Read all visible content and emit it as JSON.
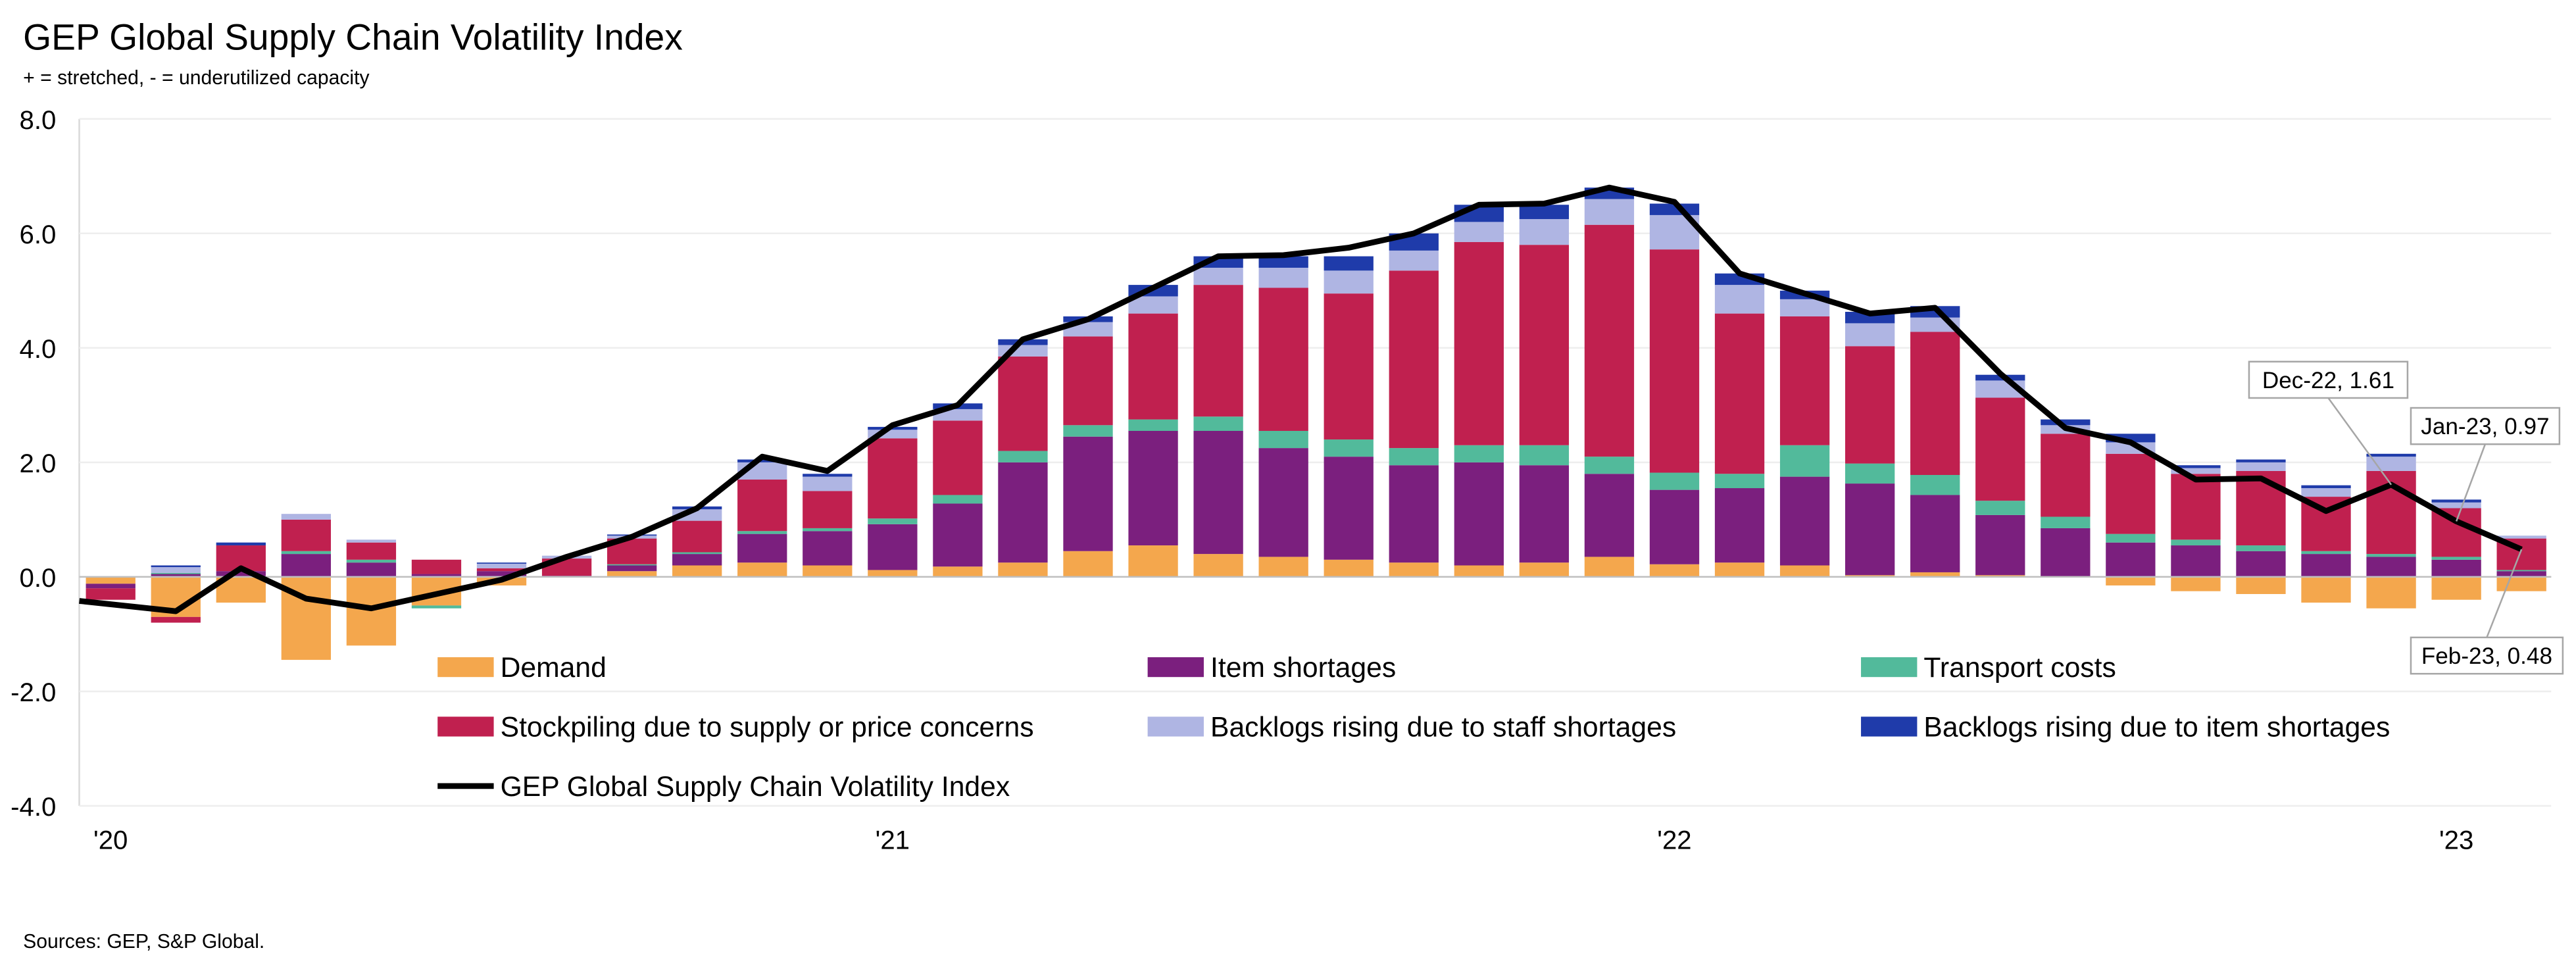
{
  "chart_data": {
    "type": "bar",
    "title": "GEP Global Supply Chain Volatility Index",
    "subtitle": "+ = stretched, - = underutilized capacity",
    "source": "Sources: GEP, S&P Global.",
    "stacked": true,
    "categories": [
      "'20",
      null,
      null,
      null,
      null,
      null,
      null,
      null,
      null,
      null,
      null,
      null,
      "'21",
      null,
      null,
      null,
      null,
      null,
      null,
      null,
      null,
      null,
      null,
      null,
      "'22",
      null,
      null,
      null,
      null,
      null,
      null,
      null,
      null,
      null,
      null,
      null,
      "'23",
      null
    ],
    "ylim": [
      -4,
      8
    ],
    "yticks": [
      {
        "value": -4,
        "label": "-4.0"
      },
      {
        "value": -2,
        "label": "-2.0"
      },
      {
        "value": 0,
        "label": "0.0"
      },
      {
        "value": 2,
        "label": "2.0"
      },
      {
        "value": 4,
        "label": "4.0"
      },
      {
        "value": 6,
        "label": "6.0"
      },
      {
        "value": 8,
        "label": "8.0"
      }
    ],
    "grid": true,
    "series": [
      {
        "name": "Demand",
        "color": "#F4A74D",
        "values": [
          -0.12,
          -0.7,
          -0.45,
          -1.45,
          -1.2,
          -0.5,
          -0.15,
          0,
          0.1,
          0.2,
          0.25,
          0.2,
          0.12,
          0.18,
          0.25,
          0.45,
          0.55,
          0.4,
          0.35,
          0.3,
          0.25,
          0.2,
          0.25,
          0.35,
          0.22,
          0.25,
          0.2,
          0.03,
          0.08,
          0.03,
          0,
          -0.15,
          -0.25,
          -0.3,
          -0.45,
          -0.55,
          -0.4,
          -0.25
        ]
      },
      {
        "name": "Item shortages",
        "color": "#7B1F7E",
        "values": [
          -0.08,
          0.05,
          0.1,
          0.4,
          0.25,
          0.05,
          0.1,
          0.02,
          0.1,
          0.2,
          0.5,
          0.6,
          0.8,
          1.1,
          1.75,
          2.0,
          2.0,
          2.15,
          1.9,
          1.8,
          1.7,
          1.8,
          1.7,
          1.45,
          1.3,
          1.3,
          1.55,
          1.6,
          1.35,
          1.05,
          0.85,
          0.6,
          0.55,
          0.45,
          0.4,
          0.35,
          0.3,
          0.1
        ]
      },
      {
        "name": "Transport costs",
        "color": "#52BA9B",
        "values": [
          0,
          0.02,
          0,
          0.05,
          0.05,
          -0.05,
          0,
          0,
          0.02,
          0.03,
          0.05,
          0.05,
          0.1,
          0.15,
          0.2,
          0.2,
          0.2,
          0.25,
          0.3,
          0.3,
          0.3,
          0.3,
          0.35,
          0.3,
          0.3,
          0.25,
          0.55,
          0.35,
          0.35,
          0.25,
          0.2,
          0.15,
          0.1,
          0.1,
          0.05,
          0.05,
          0.05,
          0.02
        ]
      },
      {
        "name": "Stockpiling due to supply or price concerns",
        "color": "#C0204F",
        "values": [
          -0.2,
          -0.1,
          0.45,
          0.55,
          0.3,
          0.25,
          0.05,
          0.3,
          0.45,
          0.55,
          0.9,
          0.65,
          1.4,
          1.3,
          1.65,
          1.55,
          1.85,
          2.3,
          2.5,
          2.55,
          3.1,
          3.55,
          3.5,
          4.05,
          3.9,
          2.8,
          2.25,
          2.05,
          2.5,
          1.8,
          1.45,
          1.4,
          1.15,
          1.3,
          0.95,
          1.45,
          0.85,
          0.55
        ]
      },
      {
        "name": "Backlogs rising due to staff shortages",
        "color": "#AFB5E3",
        "values": [
          0,
          0.1,
          0,
          0.1,
          0.05,
          0,
          0.08,
          0.05,
          0.05,
          0.2,
          0.3,
          0.25,
          0.15,
          0.2,
          0.2,
          0.25,
          0.3,
          0.3,
          0.35,
          0.4,
          0.35,
          0.35,
          0.45,
          0.45,
          0.6,
          0.5,
          0.3,
          0.4,
          0.25,
          0.3,
          0.15,
          0.2,
          0.1,
          0.15,
          0.15,
          0.25,
          0.1,
          0.05
        ]
      },
      {
        "name": "Backlogs rising due to item shortages",
        "color": "#1F3BAA",
        "values": [
          0,
          0.03,
          0.05,
          0,
          0,
          0,
          0.02,
          0,
          0.02,
          0.05,
          0.05,
          0.05,
          0.05,
          0.1,
          0.1,
          0.1,
          0.2,
          0.2,
          0.2,
          0.25,
          0.3,
          0.3,
          0.25,
          0.2,
          0.2,
          0.2,
          0.15,
          0.2,
          0.2,
          0.1,
          0.1,
          0.15,
          0.05,
          0.05,
          0.05,
          0.05,
          0.05,
          0
        ]
      },
      {
        "name": "GEP Global Supply Chain Volatility Index",
        "color": "#000000",
        "type": "line",
        "values": [
          -0.42,
          -0.6,
          0.15,
          -0.38,
          -0.55,
          -0.3,
          -0.05,
          0.35,
          0.7,
          1.2,
          2.1,
          1.85,
          2.65,
          3.0,
          4.15,
          4.5,
          5.05,
          5.6,
          5.62,
          5.75,
          6.0,
          6.5,
          6.52,
          6.8,
          6.55,
          5.3,
          4.95,
          4.6,
          4.7,
          3.55,
          2.6,
          2.35,
          1.7,
          1.72,
          1.15,
          1.61,
          0.97,
          0.48
        ]
      }
    ],
    "annotations": [
      {
        "text": "Dec-22, 1.61"
      },
      {
        "text": "Jan-23, 0.97"
      },
      {
        "text": "Feb-23, 0.48"
      }
    ]
  }
}
